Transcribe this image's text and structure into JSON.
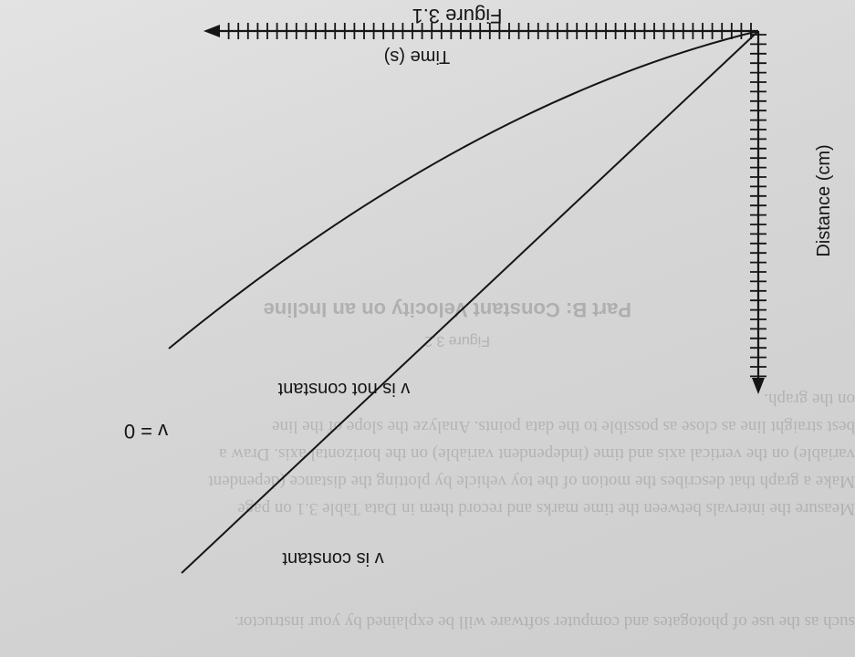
{
  "figure": {
    "caption": "Figure 3.1",
    "x_axis_label": "Time (s)",
    "y_axis_label": "Distance (cm)",
    "annotations": {
      "constant": "v is constant",
      "not_constant": "v is not constant",
      "zero": "v = 0"
    }
  },
  "bleed_through": {
    "heading": "Part B: Constant Velocity on an Incline",
    "figure_ref": "Figure 3.2",
    "paragraphs": [
      "such as the use of photogates and computer software will be explained by your instructor.",
      "Measure the intervals between the time marks and record them in Data Table 3.1 on page",
      "Make a graph that describes the motion of the toy vehicle by plotting the distance (dependent",
      "variable) on the vertical axis and time (independent variable) on the horizontal axis. Draw a",
      "best straight line as close as possible to the data points. Analyze the slope of the line",
      "on the graph."
    ]
  },
  "colors": {
    "ink": "#151515",
    "paper": "#d9d9d9"
  }
}
